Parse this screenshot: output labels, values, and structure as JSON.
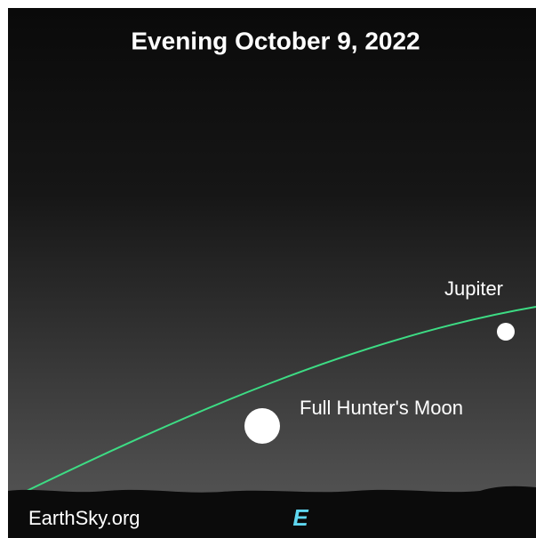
{
  "header": {
    "title": "Evening October 9, 2022"
  },
  "objects": [
    {
      "label": "Jupiter"
    },
    {
      "label": "Full Hunter's Moon"
    }
  ],
  "footer": {
    "credit": "EarthSky.org",
    "direction": "E"
  }
}
